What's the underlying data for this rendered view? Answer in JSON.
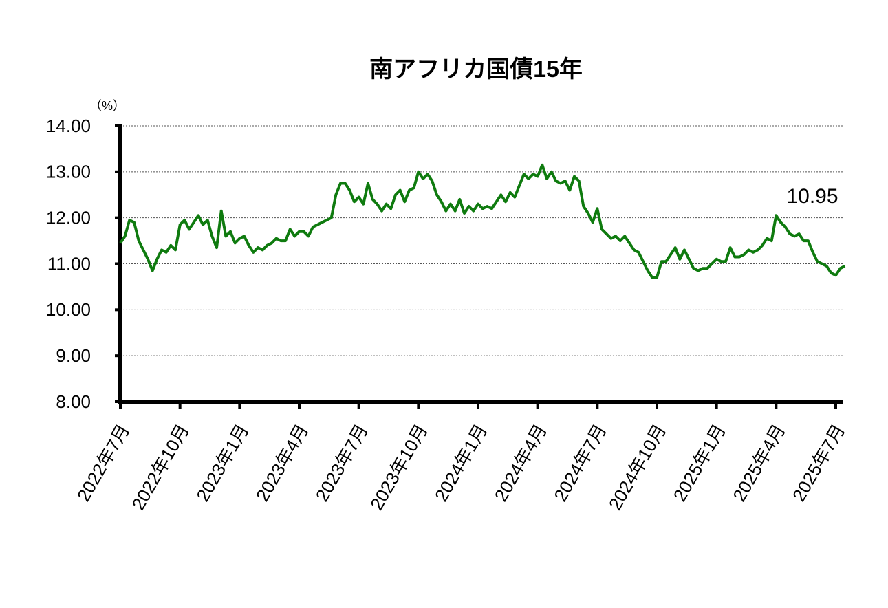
{
  "chart_data": {
    "type": "line",
    "title": "南アフリカ国債15年",
    "y_unit_label": "（%）",
    "annotation": "10.95",
    "categories": [
      "2022年7月",
      null,
      null,
      null,
      null,
      null,
      null,
      null,
      null,
      null,
      null,
      null,
      null,
      "2022年10月",
      null,
      null,
      null,
      null,
      null,
      null,
      null,
      null,
      null,
      null,
      null,
      null,
      "2023年1月",
      null,
      null,
      null,
      null,
      null,
      null,
      null,
      null,
      null,
      null,
      null,
      null,
      "2023年4月",
      null,
      null,
      null,
      null,
      null,
      null,
      null,
      null,
      null,
      null,
      null,
      null,
      "2023年7月",
      null,
      null,
      null,
      null,
      null,
      null,
      null,
      null,
      null,
      null,
      null,
      null,
      "2023年10月",
      null,
      null,
      null,
      null,
      null,
      null,
      null,
      null,
      null,
      null,
      null,
      null,
      "2024年1月",
      null,
      null,
      null,
      null,
      null,
      null,
      null,
      null,
      null,
      null,
      null,
      null,
      "2024年4月",
      null,
      null,
      null,
      null,
      null,
      null,
      null,
      null,
      null,
      null,
      null,
      null,
      "2024年7月",
      null,
      null,
      null,
      null,
      null,
      null,
      null,
      null,
      null,
      null,
      null,
      null,
      "2024年10月",
      null,
      null,
      null,
      null,
      null,
      null,
      null,
      null,
      null,
      null,
      null,
      null,
      "2025年1月",
      null,
      null,
      null,
      null,
      null,
      null,
      null,
      null,
      null,
      null,
      null,
      null,
      "2025年4月",
      null,
      null,
      null,
      null,
      null,
      null,
      null,
      null,
      null,
      null,
      null,
      null,
      "2025年7月",
      null,
      null
    ],
    "series": [
      {
        "color": "#0f7b0f",
        "values": [
          11.45,
          11.6,
          11.95,
          11.9,
          11.5,
          11.3,
          11.1,
          10.85,
          11.1,
          11.3,
          11.25,
          11.4,
          11.3,
          11.85,
          11.95,
          11.75,
          11.9,
          12.05,
          11.85,
          11.95,
          11.6,
          11.35,
          12.15,
          11.6,
          11.7,
          11.45,
          11.55,
          11.6,
          11.4,
          11.25,
          11.35,
          11.3,
          11.4,
          11.45,
          11.55,
          11.5,
          11.5,
          11.75,
          11.6,
          11.7,
          11.7,
          11.6,
          11.8,
          11.85,
          11.9,
          11.95,
          12.0,
          12.5,
          12.75,
          12.75,
          12.6,
          12.35,
          12.45,
          12.3,
          12.75,
          12.4,
          12.3,
          12.15,
          12.3,
          12.2,
          12.5,
          12.6,
          12.35,
          12.6,
          12.65,
          13.0,
          12.85,
          12.95,
          12.8,
          12.5,
          12.35,
          12.15,
          12.3,
          12.15,
          12.4,
          12.1,
          12.25,
          12.15,
          12.3,
          12.2,
          12.25,
          12.2,
          12.35,
          12.5,
          12.35,
          12.55,
          12.45,
          12.7,
          12.95,
          12.85,
          12.95,
          12.9,
          13.15,
          12.85,
          13.0,
          12.8,
          12.75,
          12.8,
          12.6,
          12.9,
          12.8,
          12.25,
          12.1,
          11.9,
          12.2,
          11.75,
          11.65,
          11.55,
          11.6,
          11.5,
          11.6,
          11.45,
          11.3,
          11.25,
          11.05,
          10.85,
          10.7,
          10.7,
          11.05,
          11.05,
          11.2,
          11.35,
          11.1,
          11.3,
          11.1,
          10.9,
          10.85,
          10.9,
          10.9,
          11.0,
          11.1,
          11.05,
          11.05,
          11.35,
          11.15,
          11.15,
          11.2,
          11.3,
          11.25,
          11.3,
          11.4,
          11.55,
          11.5,
          12.05,
          11.9,
          11.8,
          11.65,
          11.6,
          11.65,
          11.5,
          11.5,
          11.25,
          11.05,
          11.0,
          10.95,
          10.8,
          10.75,
          10.9,
          10.95
        ]
      }
    ],
    "ylim": [
      8,
      14
    ],
    "yticks": [
      {
        "value": 8,
        "label": "8.00"
      },
      {
        "value": 9,
        "label": "9.00"
      },
      {
        "value": 10,
        "label": "10.00"
      },
      {
        "value": 11,
        "label": "11.00"
      },
      {
        "value": 12,
        "label": "12.00"
      },
      {
        "value": 13,
        "label": "13.00"
      },
      {
        "value": 14,
        "label": "14.00"
      }
    ],
    "grid": true
  }
}
